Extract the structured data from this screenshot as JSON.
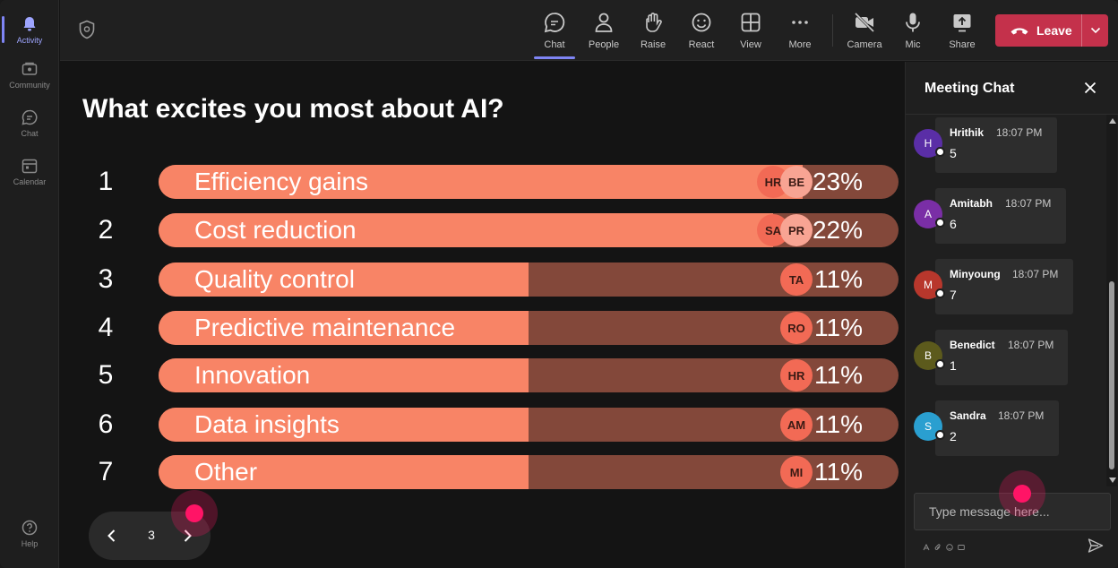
{
  "rail": {
    "items": [
      {
        "label": "Activity",
        "icon": "bell-icon",
        "active": true
      },
      {
        "label": "Community",
        "icon": "community-icon"
      },
      {
        "label": "Chat",
        "icon": "chat-icon"
      },
      {
        "label": "Calendar",
        "icon": "calendar-icon"
      }
    ],
    "help_label": "Help"
  },
  "toolbar": {
    "buttons": [
      {
        "label": "Chat",
        "icon": "chat-icon",
        "active": true
      },
      {
        "label": "People",
        "icon": "people-icon"
      },
      {
        "label": "Raise",
        "icon": "raise-hand-icon"
      },
      {
        "label": "React",
        "icon": "smiley-icon"
      },
      {
        "label": "View",
        "icon": "grid-icon"
      },
      {
        "label": "More",
        "icon": "more-icon"
      },
      {
        "label": "Camera",
        "icon": "camera-off-icon"
      },
      {
        "label": "Mic",
        "icon": "mic-icon"
      },
      {
        "label": "Share",
        "icon": "share-icon"
      }
    ],
    "leave_label": "Leave"
  },
  "poll": {
    "title": "What excites you most about AI?",
    "options": [
      {
        "num": "1",
        "label": "Efficiency gains",
        "pct": "23%",
        "fraction": 0.87,
        "avatars": [
          "HR",
          "BE"
        ]
      },
      {
        "num": "2",
        "label": "Cost reduction",
        "pct": "22%",
        "fraction": 0.83,
        "avatars": [
          "SA",
          "PR"
        ]
      },
      {
        "num": "3",
        "label": "Quality control",
        "pct": "11%",
        "fraction": 0.5,
        "avatars": [
          "TA"
        ]
      },
      {
        "num": "4",
        "label": "Predictive maintenance",
        "pct": "11%",
        "fraction": 0.5,
        "avatars": [
          "RO"
        ]
      },
      {
        "num": "5",
        "label": "Innovation",
        "pct": "11%",
        "fraction": 0.5,
        "avatars": [
          "HR"
        ]
      },
      {
        "num": "6",
        "label": "Data insights",
        "pct": "11%",
        "fraction": 0.5,
        "avatars": [
          "AM"
        ]
      },
      {
        "num": "7",
        "label": "Other",
        "pct": "11%",
        "fraction": 0.5,
        "avatars": [
          "MI"
        ]
      }
    ],
    "page": "3"
  },
  "chat": {
    "title": "Meeting Chat",
    "messages": [
      {
        "initial": "H",
        "name": "Hrithik",
        "time": "18:07 PM",
        "text": "5",
        "color": "#5a2ea6"
      },
      {
        "initial": "A",
        "name": "Amitabh",
        "time": "18:07 PM",
        "text": "6",
        "color": "#7a2ea6"
      },
      {
        "initial": "M",
        "name": "Minyoung",
        "time": "18:07 PM",
        "text": "7",
        "color": "#b8372c"
      },
      {
        "initial": "B",
        "name": "Benedict",
        "time": "18:07 PM",
        "text": "1",
        "color": "#5c5a1c"
      },
      {
        "initial": "S",
        "name": "Sandra",
        "time": "18:07 PM",
        "text": "2",
        "color": "#2a9fd0"
      }
    ],
    "input_placeholder": "Type message here..."
  },
  "colors": {
    "bar_fill": "#f88466",
    "bar_track": "#83483a",
    "leave": "#c4314b",
    "accent": "#7f85f5",
    "cursor": "#ff1466"
  }
}
